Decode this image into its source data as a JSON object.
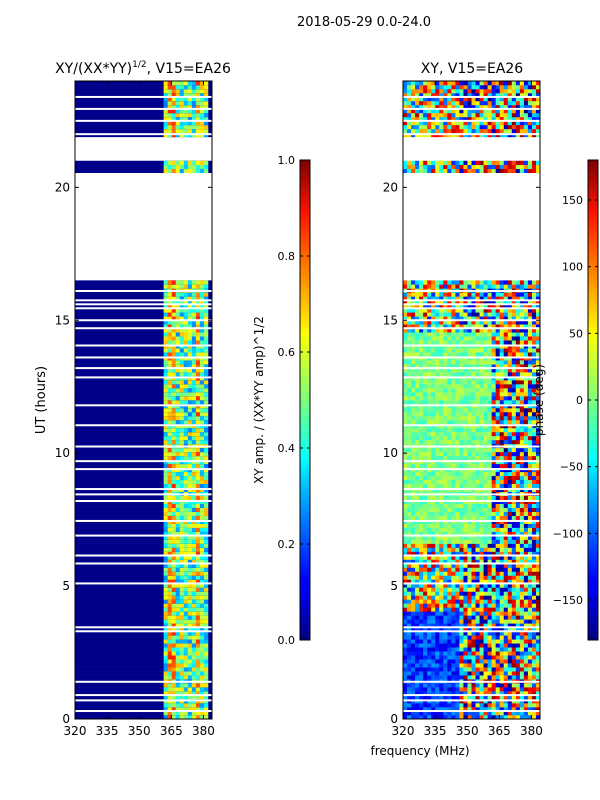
{
  "suptitle": "2018-05-29 0.0-24.0",
  "shared": {
    "xlabel": "frequency (MHz)",
    "ylabel": "UT (hours)",
    "colors": {
      "band_background": "#00008b",
      "gap": "#ffffff"
    }
  },
  "chart_data": [
    {
      "type": "heatmap",
      "title_prefix": "XY/(XX*YY)",
      "title_exponent": "1/2",
      "title_suffix": ", V15=EA26",
      "xlabel": "",
      "ylabel": "UT (hours)",
      "xlim": [
        320,
        384
      ],
      "ylim": [
        0,
        24
      ],
      "xticks": [
        320,
        335,
        350,
        365,
        380
      ],
      "yticks": [
        0,
        5,
        10,
        15,
        20
      ],
      "colorbar": {
        "label": "XY amp. / (XX*YY amp)^1/2",
        "range": [
          0.0,
          1.0
        ],
        "ticks": [
          "0.0",
          "0.2",
          "0.4",
          "0.6",
          "0.8",
          "1.0"
        ],
        "colormap": "jet"
      }
    },
    {
      "type": "heatmap",
      "title": "XY, V15=EA26",
      "xlabel": "frequency (MHz)",
      "ylabel": "",
      "xlim": [
        320,
        384
      ],
      "ylim": [
        0,
        24
      ],
      "xticks": [
        320,
        335,
        350,
        365,
        380
      ],
      "yticks": [
        0,
        5,
        10,
        15,
        20
      ],
      "colorbar": {
        "label": "phase (deg)",
        "range": [
          -180,
          180
        ],
        "ticks": [
          "−150",
          "−100",
          "−50",
          "0",
          "50",
          "100",
          "150"
        ],
        "colormap": "jet"
      }
    }
  ]
}
